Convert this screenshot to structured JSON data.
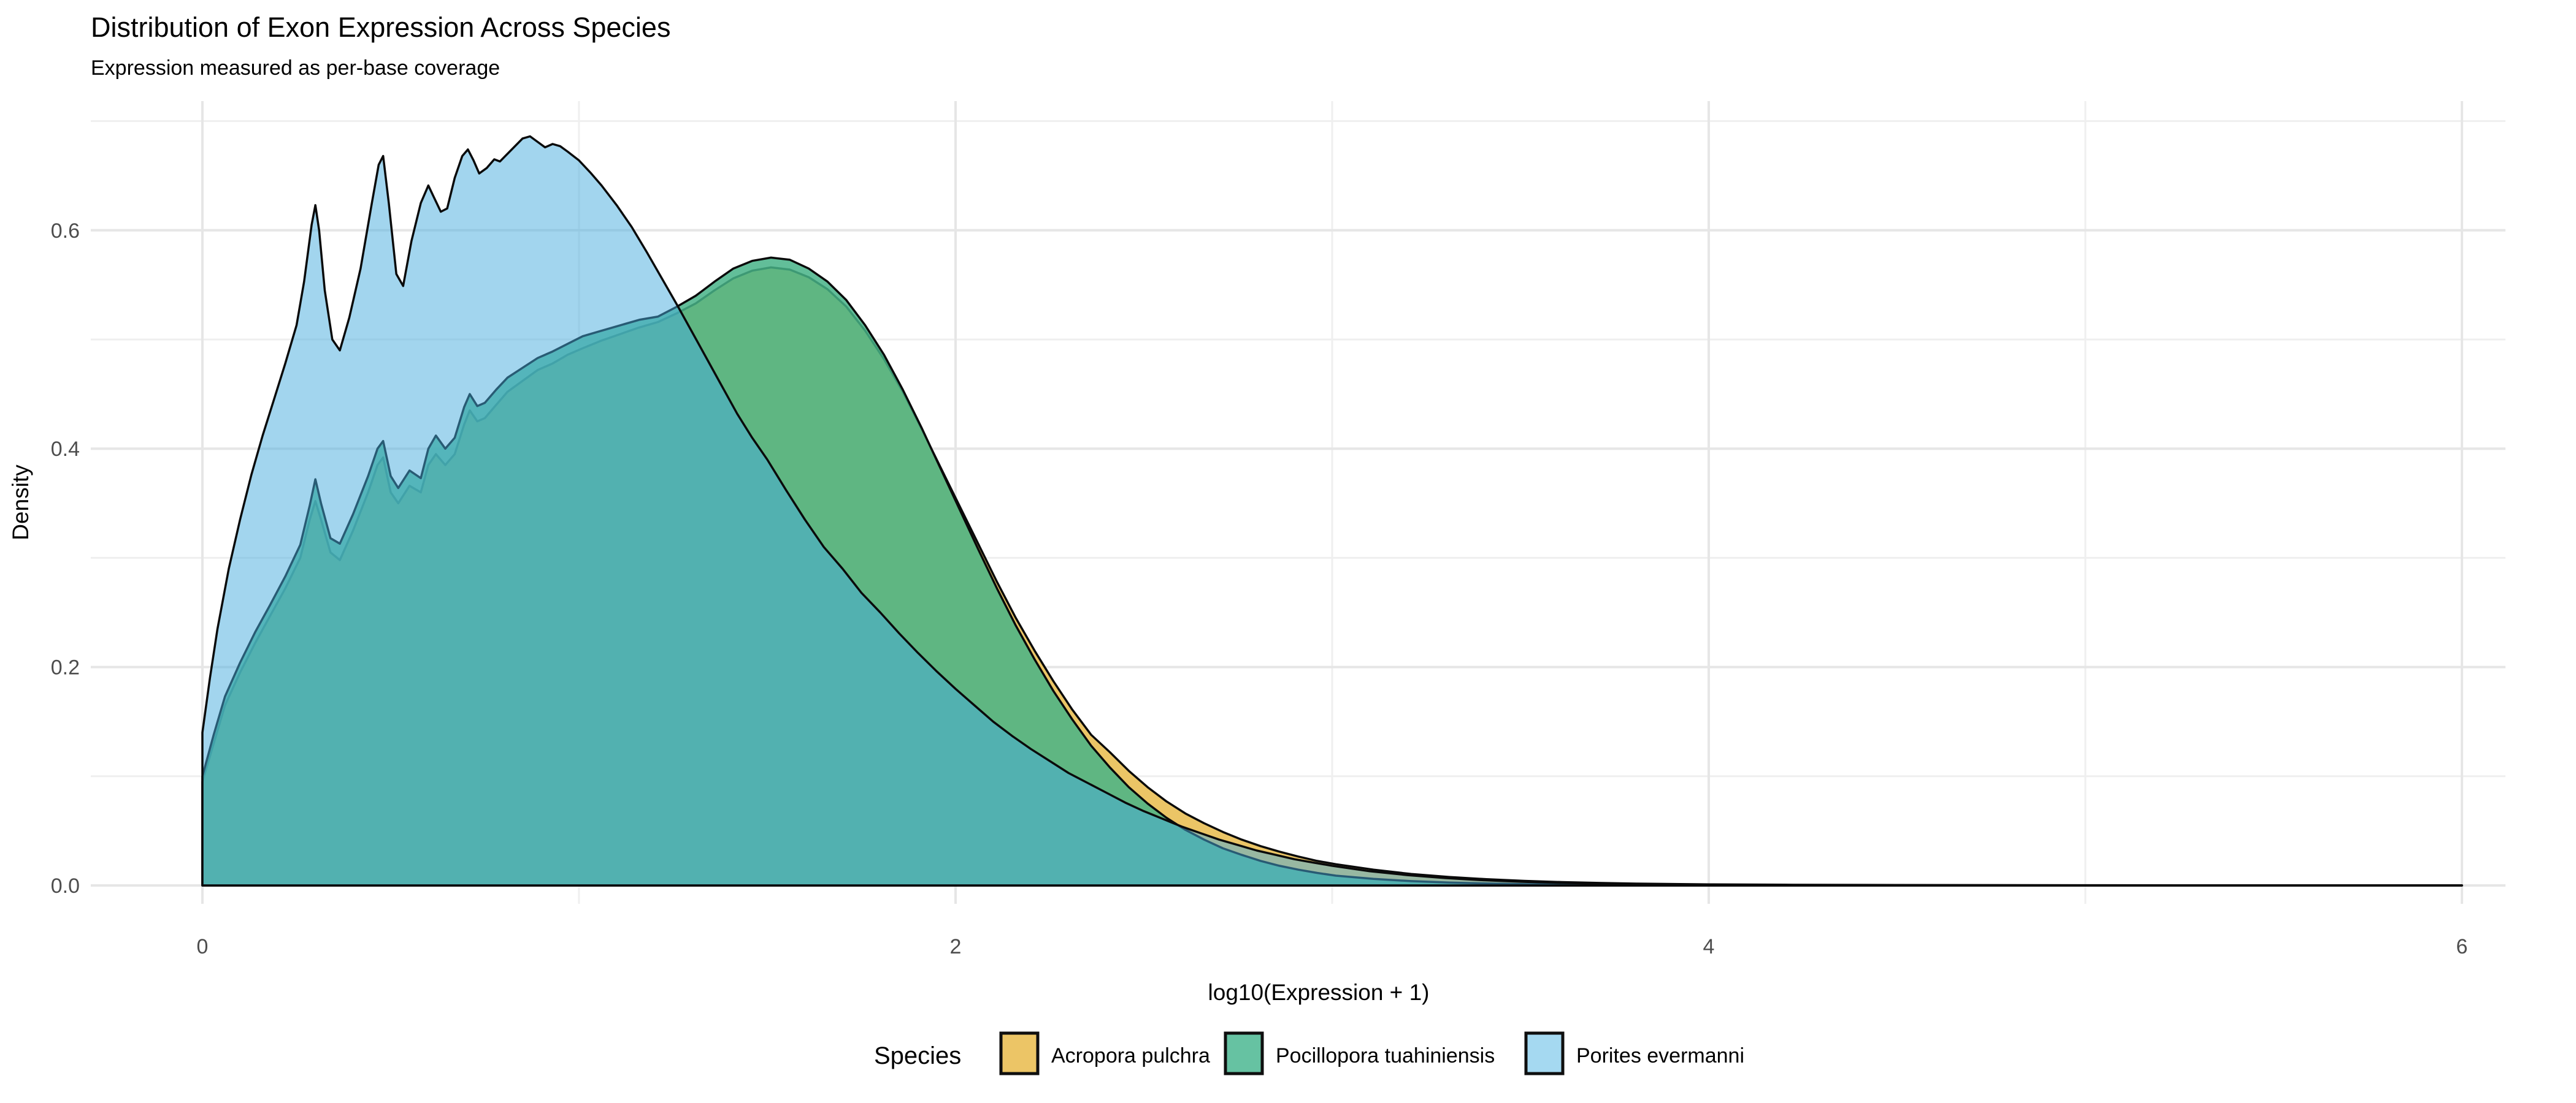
{
  "chart_data": {
    "type": "area",
    "title": "Distribution of Exon Expression Across Species",
    "subtitle": "Expression measured as per-base coverage",
    "xlabel": "log10(Expression + 1)",
    "ylabel": "Density",
    "legend_title": "Species",
    "legend_position": "bottom",
    "grid": true,
    "xlim": [
      0,
      6
    ],
    "ylim": [
      0,
      0.72
    ],
    "x_ticks": {
      "values": [
        0,
        2,
        4,
        6
      ],
      "labels": [
        "0",
        "2",
        "4",
        "6"
      ]
    },
    "x_minor": [
      1,
      3,
      5
    ],
    "y_ticks": {
      "values": [
        0,
        0.2,
        0.4,
        0.6
      ],
      "labels": [
        "0.0",
        "0.2",
        "0.4",
        "0.6"
      ]
    },
    "y_minor": [
      0.1,
      0.3,
      0.5,
      0.7
    ],
    "colors": {
      "grid_major": "#E6E6E6",
      "grid_minor": "#EFEFEF",
      "tick_label": "#4D4D4D",
      "text": "#000000",
      "curve_outline": "#0A0A0A"
    },
    "series": [
      {
        "name": "Acropora pulchra",
        "legend_color": "#ECC566",
        "fill": "#EBC566",
        "fill_opacity": 1,
        "points": [
          [
            0,
            0.095
          ],
          [
            0.03,
            0.13
          ],
          [
            0.06,
            0.165
          ],
          [
            0.1,
            0.195
          ],
          [
            0.14,
            0.222
          ],
          [
            0.18,
            0.247
          ],
          [
            0.22,
            0.272
          ],
          [
            0.26,
            0.3
          ],
          [
            0.285,
            0.335
          ],
          [
            0.3,
            0.352
          ],
          [
            0.315,
            0.335
          ],
          [
            0.34,
            0.305
          ],
          [
            0.365,
            0.298
          ],
          [
            0.4,
            0.325
          ],
          [
            0.44,
            0.36
          ],
          [
            0.465,
            0.385
          ],
          [
            0.48,
            0.392
          ],
          [
            0.5,
            0.36
          ],
          [
            0.52,
            0.35
          ],
          [
            0.55,
            0.366
          ],
          [
            0.58,
            0.36
          ],
          [
            0.6,
            0.385
          ],
          [
            0.62,
            0.395
          ],
          [
            0.645,
            0.385
          ],
          [
            0.67,
            0.395
          ],
          [
            0.695,
            0.422
          ],
          [
            0.71,
            0.435
          ],
          [
            0.73,
            0.425
          ],
          [
            0.75,
            0.428
          ],
          [
            0.78,
            0.44
          ],
          [
            0.81,
            0.452
          ],
          [
            0.85,
            0.462
          ],
          [
            0.89,
            0.472
          ],
          [
            0.93,
            0.478
          ],
          [
            0.97,
            0.486
          ],
          [
            1.01,
            0.492
          ],
          [
            1.06,
            0.499
          ],
          [
            1.11,
            0.505
          ],
          [
            1.16,
            0.511
          ],
          [
            1.21,
            0.516
          ],
          [
            1.26,
            0.524
          ],
          [
            1.31,
            0.533
          ],
          [
            1.36,
            0.545
          ],
          [
            1.41,
            0.556
          ],
          [
            1.46,
            0.563
          ],
          [
            1.51,
            0.566
          ],
          [
            1.56,
            0.564
          ],
          [
            1.61,
            0.557
          ],
          [
            1.66,
            0.546
          ],
          [
            1.71,
            0.53
          ],
          [
            1.76,
            0.508
          ],
          [
            1.81,
            0.482
          ],
          [
            1.86,
            0.452
          ],
          [
            1.91,
            0.418
          ],
          [
            1.96,
            0.383
          ],
          [
            2.01,
            0.348
          ],
          [
            2.06,
            0.313
          ],
          [
            2.11,
            0.278
          ],
          [
            2.16,
            0.245
          ],
          [
            2.21,
            0.215
          ],
          [
            2.26,
            0.187
          ],
          [
            2.31,
            0.161
          ],
          [
            2.36,
            0.138
          ],
          [
            2.41,
            0.122
          ],
          [
            2.46,
            0.105
          ],
          [
            2.51,
            0.09
          ],
          [
            2.56,
            0.077
          ],
          [
            2.61,
            0.066
          ],
          [
            2.66,
            0.057
          ],
          [
            2.71,
            0.049
          ],
          [
            2.76,
            0.042
          ],
          [
            2.81,
            0.036
          ],
          [
            2.86,
            0.031
          ],
          [
            2.91,
            0.0265
          ],
          [
            2.96,
            0.0225
          ],
          [
            3.01,
            0.0195
          ],
          [
            3.11,
            0.0145
          ],
          [
            3.21,
            0.0105
          ],
          [
            3.31,
            0.0078
          ],
          [
            3.41,
            0.0057
          ],
          [
            3.51,
            0.0042
          ],
          [
            3.61,
            0.0031
          ],
          [
            3.71,
            0.0023
          ],
          [
            3.81,
            0.0017
          ],
          [
            4.0,
            0.001
          ],
          [
            4.2,
            0.0007
          ],
          [
            4.5,
            0.0004
          ],
          [
            5.0,
            0.0002
          ],
          [
            5.5,
            0.0001
          ],
          [
            6.0,
            0.0001
          ]
        ]
      },
      {
        "name": "Pocillopora tuahiniensis",
        "legend_color": "#66C2A2",
        "fill": "#46B387",
        "fill_opacity": 0.85,
        "points": [
          [
            0,
            0.1
          ],
          [
            0.03,
            0.138
          ],
          [
            0.06,
            0.173
          ],
          [
            0.1,
            0.204
          ],
          [
            0.14,
            0.232
          ],
          [
            0.18,
            0.257
          ],
          [
            0.22,
            0.283
          ],
          [
            0.26,
            0.312
          ],
          [
            0.285,
            0.348
          ],
          [
            0.3,
            0.372
          ],
          [
            0.315,
            0.35
          ],
          [
            0.34,
            0.318
          ],
          [
            0.365,
            0.313
          ],
          [
            0.4,
            0.34
          ],
          [
            0.44,
            0.375
          ],
          [
            0.465,
            0.4
          ],
          [
            0.48,
            0.407
          ],
          [
            0.5,
            0.375
          ],
          [
            0.52,
            0.364
          ],
          [
            0.55,
            0.38
          ],
          [
            0.58,
            0.373
          ],
          [
            0.6,
            0.4
          ],
          [
            0.62,
            0.412
          ],
          [
            0.645,
            0.4
          ],
          [
            0.67,
            0.41
          ],
          [
            0.695,
            0.438
          ],
          [
            0.71,
            0.45
          ],
          [
            0.73,
            0.439
          ],
          [
            0.75,
            0.442
          ],
          [
            0.78,
            0.454
          ],
          [
            0.81,
            0.465
          ],
          [
            0.85,
            0.474
          ],
          [
            0.89,
            0.483
          ],
          [
            0.93,
            0.489
          ],
          [
            0.97,
            0.496
          ],
          [
            1.01,
            0.503
          ],
          [
            1.06,
            0.508
          ],
          [
            1.11,
            0.513
          ],
          [
            1.16,
            0.518
          ],
          [
            1.21,
            0.521
          ],
          [
            1.26,
            0.53
          ],
          [
            1.31,
            0.54
          ],
          [
            1.36,
            0.553
          ],
          [
            1.41,
            0.565
          ],
          [
            1.46,
            0.572
          ],
          [
            1.51,
            0.575
          ],
          [
            1.56,
            0.573
          ],
          [
            1.61,
            0.565
          ],
          [
            1.66,
            0.553
          ],
          [
            1.71,
            0.536
          ],
          [
            1.76,
            0.513
          ],
          [
            1.81,
            0.486
          ],
          [
            1.86,
            0.454
          ],
          [
            1.91,
            0.419
          ],
          [
            1.96,
            0.382
          ],
          [
            2.01,
            0.345
          ],
          [
            2.06,
            0.308
          ],
          [
            2.11,
            0.272
          ],
          [
            2.16,
            0.238
          ],
          [
            2.21,
            0.207
          ],
          [
            2.26,
            0.178
          ],
          [
            2.31,
            0.152
          ],
          [
            2.36,
            0.128
          ],
          [
            2.41,
            0.108
          ],
          [
            2.46,
            0.09
          ],
          [
            2.51,
            0.075
          ],
          [
            2.56,
            0.062
          ],
          [
            2.61,
            0.051
          ],
          [
            2.66,
            0.042
          ],
          [
            2.71,
            0.034
          ],
          [
            2.76,
            0.028
          ],
          [
            2.81,
            0.0225
          ],
          [
            2.86,
            0.018
          ],
          [
            2.91,
            0.0145
          ],
          [
            2.96,
            0.0115
          ],
          [
            3.01,
            0.009
          ],
          [
            3.11,
            0.006
          ],
          [
            3.21,
            0.004
          ],
          [
            3.31,
            0.0027
          ],
          [
            3.41,
            0.0018
          ],
          [
            3.51,
            0.0012
          ],
          [
            3.61,
            0.0008
          ],
          [
            3.81,
            0.0004
          ],
          [
            4.0,
            0.0002
          ],
          [
            4.5,
            0.0001
          ],
          [
            5.0,
            0
          ],
          [
            6.0,
            0
          ]
        ]
      },
      {
        "name": "Porites evermanni",
        "legend_color": "#A5D9F1",
        "fill": "#46ACDE",
        "fill_opacity": 0.5,
        "points": [
          [
            0,
            0.14
          ],
          [
            0.02,
            0.19
          ],
          [
            0.04,
            0.235
          ],
          [
            0.07,
            0.29
          ],
          [
            0.1,
            0.335
          ],
          [
            0.13,
            0.376
          ],
          [
            0.16,
            0.412
          ],
          [
            0.19,
            0.445
          ],
          [
            0.22,
            0.478
          ],
          [
            0.25,
            0.513
          ],
          [
            0.27,
            0.553
          ],
          [
            0.29,
            0.605
          ],
          [
            0.3,
            0.623
          ],
          [
            0.31,
            0.6
          ],
          [
            0.325,
            0.545
          ],
          [
            0.345,
            0.5
          ],
          [
            0.365,
            0.49
          ],
          [
            0.39,
            0.52
          ],
          [
            0.42,
            0.565
          ],
          [
            0.45,
            0.625
          ],
          [
            0.468,
            0.66
          ],
          [
            0.48,
            0.668
          ],
          [
            0.495,
            0.625
          ],
          [
            0.515,
            0.56
          ],
          [
            0.533,
            0.549
          ],
          [
            0.555,
            0.59
          ],
          [
            0.58,
            0.625
          ],
          [
            0.6,
            0.641
          ],
          [
            0.615,
            0.63
          ],
          [
            0.633,
            0.617
          ],
          [
            0.65,
            0.62
          ],
          [
            0.67,
            0.648
          ],
          [
            0.69,
            0.668
          ],
          [
            0.705,
            0.674
          ],
          [
            0.72,
            0.664
          ],
          [
            0.735,
            0.652
          ],
          [
            0.755,
            0.657
          ],
          [
            0.775,
            0.665
          ],
          [
            0.79,
            0.663
          ],
          [
            0.81,
            0.67
          ],
          [
            0.83,
            0.677
          ],
          [
            0.85,
            0.684
          ],
          [
            0.87,
            0.686
          ],
          [
            0.89,
            0.681
          ],
          [
            0.91,
            0.676
          ],
          [
            0.93,
            0.679
          ],
          [
            0.95,
            0.677
          ],
          [
            0.97,
            0.672
          ],
          [
            1.0,
            0.664
          ],
          [
            1.03,
            0.653
          ],
          [
            1.06,
            0.641
          ],
          [
            1.1,
            0.623
          ],
          [
            1.14,
            0.603
          ],
          [
            1.18,
            0.58
          ],
          [
            1.22,
            0.556
          ],
          [
            1.26,
            0.532
          ],
          [
            1.3,
            0.507
          ],
          [
            1.34,
            0.482
          ],
          [
            1.38,
            0.457
          ],
          [
            1.42,
            0.432
          ],
          [
            1.46,
            0.41
          ],
          [
            1.5,
            0.39
          ],
          [
            1.55,
            0.362
          ],
          [
            1.6,
            0.335
          ],
          [
            1.65,
            0.31
          ],
          [
            1.7,
            0.29
          ],
          [
            1.75,
            0.268
          ],
          [
            1.8,
            0.25
          ],
          [
            1.85,
            0.231
          ],
          [
            1.9,
            0.213
          ],
          [
            1.95,
            0.196
          ],
          [
            2.0,
            0.18
          ],
          [
            2.05,
            0.165
          ],
          [
            2.1,
            0.15
          ],
          [
            2.15,
            0.137
          ],
          [
            2.2,
            0.125
          ],
          [
            2.25,
            0.114
          ],
          [
            2.3,
            0.103
          ],
          [
            2.35,
            0.094
          ],
          [
            2.4,
            0.085
          ],
          [
            2.45,
            0.076
          ],
          [
            2.5,
            0.068
          ],
          [
            2.55,
            0.061
          ],
          [
            2.6,
            0.054
          ],
          [
            2.65,
            0.048
          ],
          [
            2.7,
            0.042
          ],
          [
            2.75,
            0.037
          ],
          [
            2.8,
            0.032
          ],
          [
            2.85,
            0.028
          ],
          [
            2.9,
            0.024
          ],
          [
            2.95,
            0.021
          ],
          [
            3.0,
            0.018
          ],
          [
            3.1,
            0.013
          ],
          [
            3.2,
            0.0095
          ],
          [
            3.3,
            0.0068
          ],
          [
            3.4,
            0.0048
          ],
          [
            3.5,
            0.0034
          ],
          [
            3.6,
            0.0024
          ],
          [
            3.8,
            0.0012
          ],
          [
            4.0,
            0.0006
          ],
          [
            4.5,
            0.0002
          ],
          [
            5.0,
            0.0001
          ],
          [
            6.0,
            0
          ]
        ]
      }
    ]
  }
}
